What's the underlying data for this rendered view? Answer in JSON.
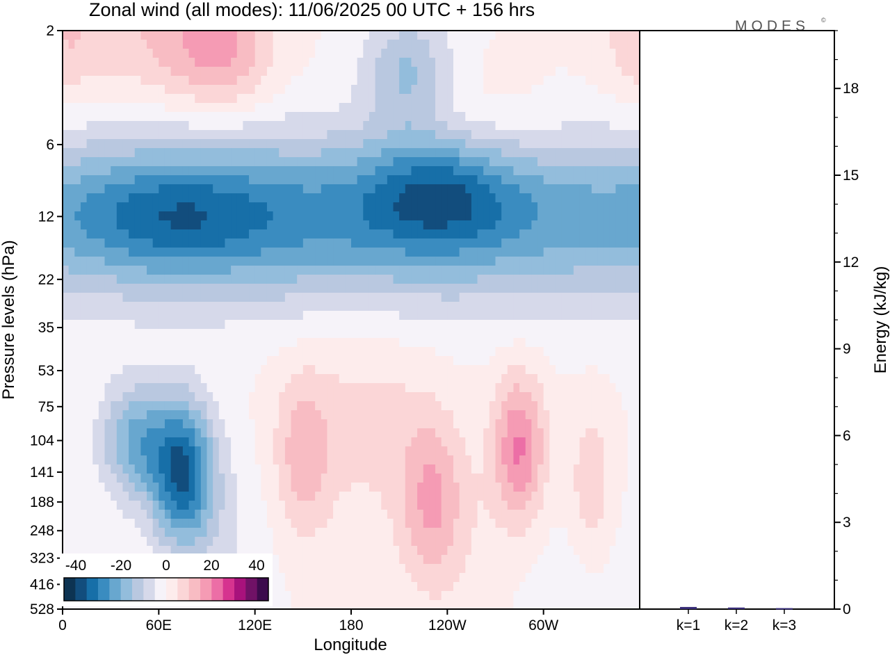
{
  "chart_data": {
    "title": "Zonal wind (all modes):  11/06/2025  00 UTC  + 156 hrs",
    "watermark": "MODES",
    "watermark_mark": "©",
    "type": "heatmap",
    "heatmap": {
      "xlabel": "Longitude",
      "ylabel": "Pressure levels (hPa)",
      "x_ticks": [
        "0",
        "60E",
        "120E",
        "180",
        "120W",
        "60W"
      ],
      "y_ticks": [
        "2",
        "6",
        "12",
        "22",
        "35",
        "53",
        "75",
        "104",
        "141",
        "188",
        "248",
        "323",
        "416",
        "528"
      ],
      "colorbar": {
        "labels": [
          "-40",
          "-20",
          "0",
          "20",
          "40"
        ],
        "colors": [
          "#0d3352",
          "#124d7d",
          "#176fa8",
          "#3a8cc0",
          "#68a7cf",
          "#93bddc",
          "#b9c8e0",
          "#d6d9ea",
          "#f6f3f9",
          "#fdecec",
          "#fbd6d7",
          "#f8bcc3",
          "#f59bb4",
          "#ec6ea6",
          "#d6338f",
          "#a8127c",
          "#701266",
          "#3c0b4c"
        ]
      },
      "features": [
        {
          "x": 0,
          "lev": 2,
          "w": 24,
          "dl": 3,
          "u": 8
        },
        {
          "x": 60,
          "lev": 2,
          "w": 50,
          "dl": 3,
          "u": 10
        },
        {
          "x": 100,
          "lev": 2.5,
          "w": 30,
          "dl": 2,
          "u": 13
        },
        {
          "x": 215,
          "lev": 3,
          "w": 28,
          "dl": 2,
          "u": -16
        },
        {
          "x": 250,
          "lev": 5,
          "w": 60,
          "dl": 2,
          "u": 6
        },
        {
          "x": 180,
          "lev": 12,
          "w": 360,
          "dl": 4,
          "u": -26
        },
        {
          "x": 70,
          "lev": 12,
          "w": 60,
          "dl": 2,
          "u": -12
        },
        {
          "x": 235,
          "lev": 9,
          "w": 45,
          "dl": 2,
          "u": -16
        },
        {
          "x": 45,
          "lev": 104,
          "w": 22,
          "dl": 2,
          "u": -20
        },
        {
          "x": 75,
          "lev": 141,
          "w": 20,
          "dl": 3,
          "u": -34
        },
        {
          "x": 100,
          "lev": 300,
          "w": 30,
          "dl": 5,
          "u": -5
        },
        {
          "x": 150,
          "lev": 120,
          "w": 18,
          "dl": 4,
          "u": 12
        },
        {
          "x": 230,
          "lev": 188,
          "w": 20,
          "dl": 4,
          "u": 14
        },
        {
          "x": 285,
          "lev": 110,
          "w": 16,
          "dl": 3,
          "u": 20
        },
        {
          "x": 190,
          "lev": 90,
          "w": 40,
          "dl": 5,
          "u": 7
        },
        {
          "x": 330,
          "lev": 160,
          "w": 12,
          "dl": 3,
          "u": 10
        },
        {
          "x": 260,
          "lev": 300,
          "w": 40,
          "dl": 6,
          "u": 4
        },
        {
          "x": 300,
          "lev": 400,
          "w": 60,
          "dl": 4,
          "u": -3
        }
      ]
    },
    "energy_panel": {
      "type": "bar",
      "ylabel": "Energy (kJ/kg)",
      "y_ticks": [
        "0",
        "3",
        "6",
        "9",
        "12",
        "15",
        "18"
      ],
      "ylim": [
        0,
        20
      ],
      "categories": [
        "k=1",
        "k=2",
        "k=3"
      ],
      "values": [
        0.05,
        0.03,
        0.01
      ],
      "bar_color": "#3a2f7a"
    }
  }
}
